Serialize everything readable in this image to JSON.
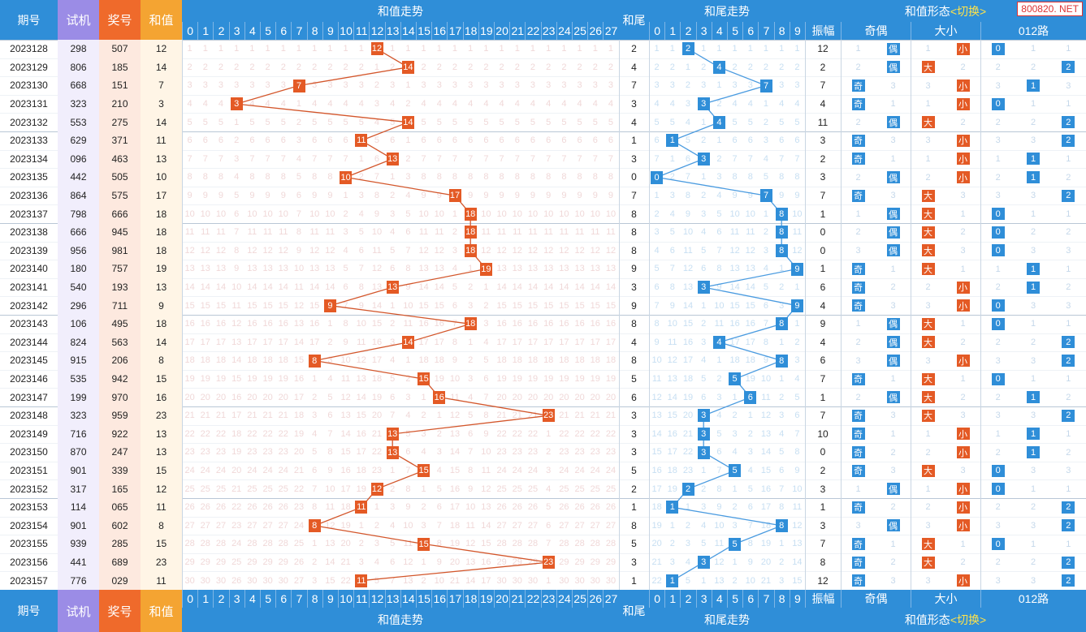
{
  "header": {
    "issue": "期号",
    "trial": "试机",
    "prize": "奖号",
    "sum": "和值",
    "sum_trend": "和值走势",
    "tail": "和尾",
    "tail_trend": "和尾走势",
    "form_title": "和值形态",
    "form_switch": "<切换>",
    "amplitude": "振幅",
    "odd_even": "奇偶",
    "big_small": "大小",
    "road012": "012路"
  },
  "watermark": "800820. NET",
  "labels": {
    "odd": "奇",
    "even": "偶",
    "big": "大",
    "small": "小"
  },
  "colors": {
    "blue": "#2f8ed8",
    "orange": "#e45a25",
    "purple": "#9b8ce6",
    "coral": "#ef6a2b",
    "amber": "#f4a432",
    "line_sum": "#d3562b",
    "line_tail": "#4a9be0"
  },
  "chart_data": {
    "type": "table",
    "sum_columns": [
      0,
      1,
      2,
      3,
      4,
      5,
      6,
      7,
      8,
      9,
      10,
      11,
      12,
      13,
      14,
      15,
      16,
      17,
      18,
      19,
      20,
      21,
      22,
      23,
      24,
      25,
      26,
      27
    ],
    "tail_columns": [
      0,
      1,
      2,
      3,
      4,
      5,
      6,
      7,
      8,
      9
    ],
    "rows": [
      {
        "issue": "2023128",
        "trial": "298",
        "prize": "507",
        "sum": 12,
        "tail": 2,
        "amp": 12,
        "oe": "偶",
        "bs": "小",
        "r012": 0
      },
      {
        "issue": "2023129",
        "trial": "806",
        "prize": "185",
        "sum": 14,
        "tail": 4,
        "amp": 2,
        "oe": "偶",
        "bs": "大",
        "r012": 2
      },
      {
        "issue": "2023130",
        "trial": "668",
        "prize": "151",
        "sum": 7,
        "tail": 7,
        "amp": 7,
        "oe": "奇",
        "bs": "小",
        "r012": 1
      },
      {
        "issue": "2023131",
        "trial": "323",
        "prize": "210",
        "sum": 3,
        "tail": 3,
        "amp": 4,
        "oe": "奇",
        "bs": "小",
        "r012": 0
      },
      {
        "issue": "2023132",
        "trial": "553",
        "prize": "275",
        "sum": 14,
        "tail": 4,
        "amp": 11,
        "oe": "偶",
        "bs": "大",
        "r012": 2
      },
      {
        "issue": "2023133",
        "trial": "629",
        "prize": "371",
        "sum": 11,
        "tail": 1,
        "amp": 3,
        "oe": "奇",
        "bs": "小",
        "r012": 2
      },
      {
        "issue": "2023134",
        "trial": "096",
        "prize": "463",
        "sum": 13,
        "tail": 3,
        "amp": 2,
        "oe": "奇",
        "bs": "小",
        "r012": 1
      },
      {
        "issue": "2023135",
        "trial": "442",
        "prize": "505",
        "sum": 10,
        "tail": 0,
        "amp": 3,
        "oe": "偶",
        "bs": "小",
        "r012": 1
      },
      {
        "issue": "2023136",
        "trial": "864",
        "prize": "575",
        "sum": 17,
        "tail": 7,
        "amp": 7,
        "oe": "奇",
        "bs": "大",
        "r012": 2
      },
      {
        "issue": "2023137",
        "trial": "798",
        "prize": "666",
        "sum": 18,
        "tail": 8,
        "amp": 1,
        "oe": "偶",
        "bs": "大",
        "r012": 0
      },
      {
        "issue": "2023138",
        "trial": "666",
        "prize": "945",
        "sum": 18,
        "tail": 8,
        "amp": 0,
        "oe": "偶",
        "bs": "大",
        "r012": 0
      },
      {
        "issue": "2023139",
        "trial": "956",
        "prize": "981",
        "sum": 18,
        "tail": 8,
        "amp": 0,
        "oe": "偶",
        "bs": "大",
        "r012": 0
      },
      {
        "issue": "2023140",
        "trial": "180",
        "prize": "757",
        "sum": 19,
        "tail": 9,
        "amp": 1,
        "oe": "奇",
        "bs": "大",
        "r012": 1
      },
      {
        "issue": "2023141",
        "trial": "540",
        "prize": "193",
        "sum": 13,
        "tail": 3,
        "amp": 6,
        "oe": "奇",
        "bs": "小",
        "r012": 1
      },
      {
        "issue": "2023142",
        "trial": "296",
        "prize": "711",
        "sum": 9,
        "tail": 9,
        "amp": 4,
        "oe": "奇",
        "bs": "小",
        "r012": 0
      },
      {
        "issue": "2023143",
        "trial": "106",
        "prize": "495",
        "sum": 18,
        "tail": 8,
        "amp": 9,
        "oe": "偶",
        "bs": "大",
        "r012": 0
      },
      {
        "issue": "2023144",
        "trial": "824",
        "prize": "563",
        "sum": 14,
        "tail": 4,
        "amp": 4,
        "oe": "偶",
        "bs": "大",
        "r012": 2
      },
      {
        "issue": "2023145",
        "trial": "915",
        "prize": "206",
        "sum": 8,
        "tail": 8,
        "amp": 6,
        "oe": "偶",
        "bs": "小",
        "r012": 2
      },
      {
        "issue": "2023146",
        "trial": "535",
        "prize": "942",
        "sum": 15,
        "tail": 5,
        "amp": 7,
        "oe": "奇",
        "bs": "大",
        "r012": 0
      },
      {
        "issue": "2023147",
        "trial": "199",
        "prize": "970",
        "sum": 16,
        "tail": 6,
        "amp": 1,
        "oe": "偶",
        "bs": "大",
        "r012": 1
      },
      {
        "issue": "2023148",
        "trial": "323",
        "prize": "959",
        "sum": 23,
        "tail": 3,
        "amp": 7,
        "oe": "奇",
        "bs": "大",
        "r012": 2
      },
      {
        "issue": "2023149",
        "trial": "716",
        "prize": "922",
        "sum": 13,
        "tail": 3,
        "amp": 10,
        "oe": "奇",
        "bs": "小",
        "r012": 1
      },
      {
        "issue": "2023150",
        "trial": "870",
        "prize": "247",
        "sum": 13,
        "tail": 3,
        "amp": 0,
        "oe": "奇",
        "bs": "小",
        "r012": 1
      },
      {
        "issue": "2023151",
        "trial": "901",
        "prize": "339",
        "sum": 15,
        "tail": 5,
        "amp": 2,
        "oe": "奇",
        "bs": "大",
        "r012": 0
      },
      {
        "issue": "2023152",
        "trial": "317",
        "prize": "165",
        "sum": 12,
        "tail": 2,
        "amp": 3,
        "oe": "偶",
        "bs": "小",
        "r012": 0
      },
      {
        "issue": "2023153",
        "trial": "114",
        "prize": "065",
        "sum": 11,
        "tail": 1,
        "amp": 1,
        "oe": "奇",
        "bs": "小",
        "r012": 2
      },
      {
        "issue": "2023154",
        "trial": "901",
        "prize": "602",
        "sum": 8,
        "tail": 8,
        "amp": 3,
        "oe": "偶",
        "bs": "小",
        "r012": 2
      },
      {
        "issue": "2023155",
        "trial": "939",
        "prize": "285",
        "sum": 15,
        "tail": 5,
        "amp": 7,
        "oe": "奇",
        "bs": "大",
        "r012": 0
      },
      {
        "issue": "2023156",
        "trial": "441",
        "prize": "689",
        "sum": 23,
        "tail": 3,
        "amp": 8,
        "oe": "奇",
        "bs": "大",
        "r012": 2
      },
      {
        "issue": "2023157",
        "trial": "776",
        "prize": "029",
        "sum": 11,
        "tail": 1,
        "amp": 12,
        "oe": "奇",
        "bs": "小",
        "r012": 2
      }
    ]
  }
}
